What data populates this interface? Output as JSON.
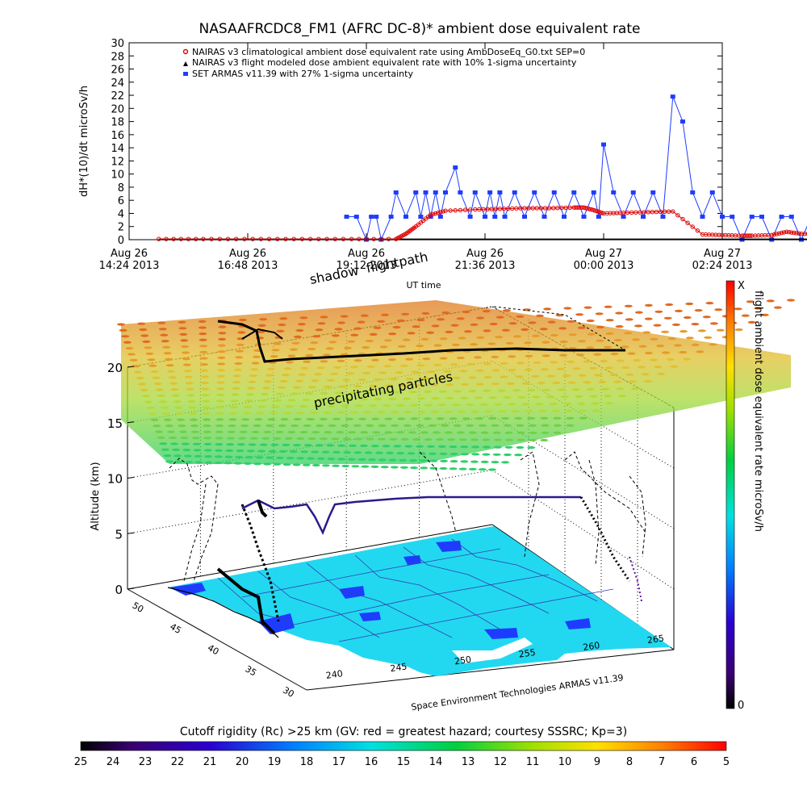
{
  "colors": {
    "nairas_clim": "#e00000",
    "nairas_flight": "#000000",
    "armas": "#1e3cff",
    "ground": "#22d8f0"
  },
  "chart_data": [
    {
      "type": "line",
      "title": "NASAAFRCDC8_FM1 (AFRC DC-8)* ambient dose equivalent rate",
      "ylabel": "dH*(10)/dt microSv/h",
      "xlabel": "UT time",
      "ylim": [
        0,
        30
      ],
      "y_ticks": [
        "0",
        "2",
        "4",
        "6",
        "8",
        "10",
        "12",
        "14",
        "16",
        "18",
        "20",
        "22",
        "24",
        "26",
        "28",
        "30"
      ],
      "x_ticks": [
        {
          "line1": "Aug 26",
          "line2": "14:24 2013"
        },
        {
          "line1": "Aug 26",
          "line2": "16:48 2013"
        },
        {
          "line1": "Aug 26",
          "line2": "19:12 2013"
        },
        {
          "line1": "Aug 26",
          "line2": "21:36 2013"
        },
        {
          "line1": "Aug 27",
          "line2": "00:00 2013"
        },
        {
          "line1": "Aug 27",
          "line2": "02:24 2013"
        }
      ],
      "x_unit": "hours after Aug 26 14:24 UT",
      "legend": [
        "NAIRAS v3 climatological ambient dose equivalent rate using AmbDoseEq_G0.txt SEP=0",
        "NAIRAS v3 flight modeled dose ambient equivalent rate with 10% 1-sigma uncertainty",
        "SET ARMAS v11.39 with 27% 1-sigma uncertainty"
      ],
      "series": [
        {
          "name": "NAIRAS v3 climatological ambient dose equivalent rate using AmbDoseEq_G0.txt SEP=0",
          "x": [
            0.6,
            1.5,
            2.5,
            3.5,
            4.5,
            5.4,
            5.6,
            5.8,
            6.1,
            6.4,
            7.0,
            7.5,
            8.0,
            8.5,
            9.0,
            9.2,
            9.4,
            9.6,
            10.0,
            10.5,
            11.0,
            11.6,
            12.0,
            12.4,
            12.6,
            13.0,
            13.3,
            13.6,
            14.0,
            14.4,
            14.8,
            15.0,
            15.2,
            15.4,
            15.6,
            15.8,
            16.0,
            16.2,
            16.4,
            16.6,
            16.8,
            17.2,
            17.6,
            17.9
          ],
          "y": [
            0.1,
            0.1,
            0.1,
            0.1,
            0.1,
            0.1,
            0.9,
            2.0,
            3.8,
            4.4,
            4.6,
            4.7,
            4.8,
            4.8,
            4.9,
            4.9,
            4.5,
            4.0,
            4.1,
            4.2,
            4.3,
            0.8,
            0.7,
            0.6,
            0.6,
            0.7,
            1.2,
            0.9,
            0.9,
            0.8,
            0.9,
            1.0,
            2.9,
            2.0,
            0.8,
            0.9,
            2.6,
            3.0,
            1.1,
            2.8,
            3.8,
            3.8,
            0.9,
            0.2
          ]
        },
        {
          "name": "NAIRAS v3 flight modeled dose ambient equivalent rate with 10% 1-sigma uncertainty",
          "x": [
            0.6,
            3.0,
            5.4,
            9.0,
            12.0,
            15.0,
            17.9
          ],
          "y": [
            0.05,
            0.05,
            0.05,
            0.05,
            0.05,
            0.05,
            0.05
          ]
        },
        {
          "name": "SET ARMAS v11.39 with 27% 1-sigma uncertainty",
          "x": [
            4.4,
            4.6,
            4.8,
            4.9,
            5.0,
            5.1,
            5.3,
            5.4,
            5.6,
            5.8,
            5.9,
            6.0,
            6.1,
            6.2,
            6.3,
            6.4,
            6.6,
            6.7,
            6.9,
            7.0,
            7.2,
            7.3,
            7.4,
            7.5,
            7.6,
            7.8,
            8.0,
            8.2,
            8.4,
            8.6,
            8.8,
            9.0,
            9.2,
            9.4,
            9.5,
            9.6,
            9.8,
            10.0,
            10.2,
            10.4,
            10.6,
            10.8,
            11.0,
            11.2,
            11.4,
            11.6,
            11.8,
            12.0,
            12.2,
            12.4,
            12.6,
            12.8,
            13.0,
            13.2,
            13.4,
            13.6,
            13.8,
            14.0,
            14.4,
            14.8,
            15.0,
            15.4,
            15.8,
            16.0,
            16.3,
            16.6,
            16.8,
            17.0,
            17.3,
            17.6
          ],
          "y": [
            3.5,
            3.5,
            0,
            3.5,
            3.5,
            0,
            3.5,
            7.2,
            3.5,
            7.2,
            3.5,
            7.2,
            3.5,
            7.2,
            3.5,
            7.2,
            11.0,
            7.2,
            3.5,
            7.2,
            3.5,
            7.2,
            3.5,
            7.2,
            3.5,
            7.2,
            3.5,
            7.2,
            3.5,
            7.2,
            3.5,
            7.2,
            3.5,
            7.2,
            3.5,
            14.5,
            7.2,
            3.5,
            7.2,
            3.5,
            7.2,
            3.5,
            21.8,
            18.0,
            7.2,
            3.5,
            7.2,
            3.5,
            3.5,
            0,
            3.5,
            3.5,
            0,
            3.5,
            3.5,
            0,
            3.5,
            3.5,
            0,
            3.5,
            3.5,
            3.5,
            0,
            3.5,
            0,
            3.5,
            3.5,
            3.5,
            3.5,
            0
          ]
        }
      ]
    },
    {
      "type": "3d-scatter",
      "zlabel": "Altitude (km)",
      "z_ticks": [
        "0",
        "5",
        "10",
        "15",
        "20"
      ],
      "lat_ticks": [
        "30",
        "35",
        "40",
        "45",
        "50"
      ],
      "lon_ticks": [
        "240",
        "245",
        "250",
        "255",
        "260",
        "265"
      ],
      "annotations": [
        "shadow",
        "flightpath",
        "precipitating particles"
      ],
      "credit": "Space Environment Technologies ARMAS v11.39",
      "colorbar_label": "flight ambient dose equivalent rate microSv/h",
      "colorbar_top": "X",
      "colorbar_bottom": "0",
      "bottom_colorbar_title": "Cutoff rigidity (Rc) >25 km (GV: red = greatest hazard; courtesy SSSRC; Kp=3)",
      "bottom_colorbar_ticks": [
        "25",
        "24",
        "23",
        "22",
        "21",
        "20",
        "19",
        "18",
        "17",
        "16",
        "15",
        "14",
        "13",
        "12",
        "11",
        "10",
        "9",
        "8",
        "7",
        "6",
        "5"
      ]
    }
  ]
}
